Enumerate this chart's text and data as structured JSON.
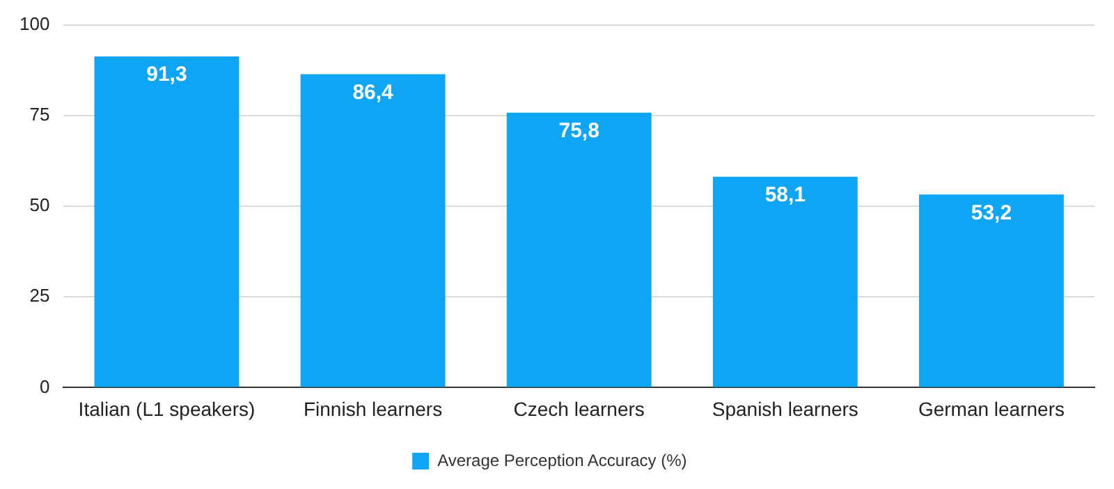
{
  "chart_data": {
    "type": "bar",
    "categories": [
      "Italian (L1 speakers)",
      "Finnish learners",
      "Czech learners",
      "Spanish learners",
      "German learners"
    ],
    "series": [
      {
        "name": "Average Perception Accuracy (%)",
        "color": "#0fa5f5",
        "values": [
          91.3,
          86.4,
          75.8,
          58.1,
          53.2
        ],
        "value_labels": [
          "91,3",
          "86,4",
          "75,8",
          "58,1",
          "53,2"
        ]
      }
    ],
    "ylim": [
      0,
      100
    ],
    "yticks": [
      0,
      25,
      50,
      75,
      100
    ],
    "grid": "y",
    "legend": "bottom"
  }
}
